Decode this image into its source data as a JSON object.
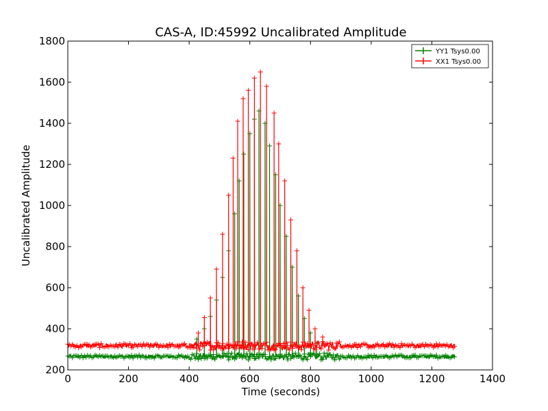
{
  "chart_data": {
    "type": "line",
    "title": "CAS-A, ID:45992 Uncalibrated Amplitude",
    "xlabel": "Time (seconds)",
    "ylabel": "Uncalibrated Amplitude",
    "xlim": [
      0,
      1400
    ],
    "ylim": [
      200,
      1800
    ],
    "xticks": [
      0,
      200,
      400,
      600,
      800,
      1000,
      1200,
      1400
    ],
    "yticks": [
      200,
      400,
      600,
      800,
      1000,
      1200,
      1400,
      1600,
      1800
    ],
    "grid": false,
    "legend_position": "top-right",
    "series": [
      {
        "name": "YY1 Tsys0.00",
        "color": "#008000",
        "baseline": 265,
        "baseline_noise": 8,
        "x_range": [
          0,
          1275
        ],
        "peaks": [
          {
            "x": 425,
            "y": 350
          },
          {
            "x": 450,
            "y": 400
          },
          {
            "x": 470,
            "y": 460
          },
          {
            "x": 490,
            "y": 540
          },
          {
            "x": 510,
            "y": 650
          },
          {
            "x": 530,
            "y": 780
          },
          {
            "x": 550,
            "y": 960
          },
          {
            "x": 565,
            "y": 1120
          },
          {
            "x": 580,
            "y": 1250
          },
          {
            "x": 600,
            "y": 1350
          },
          {
            "x": 615,
            "y": 1420
          },
          {
            "x": 630,
            "y": 1460
          },
          {
            "x": 650,
            "y": 1400
          },
          {
            "x": 665,
            "y": 1290
          },
          {
            "x": 685,
            "y": 1150
          },
          {
            "x": 700,
            "y": 1000
          },
          {
            "x": 720,
            "y": 850
          },
          {
            "x": 740,
            "y": 700
          },
          {
            "x": 760,
            "y": 560
          },
          {
            "x": 780,
            "y": 450
          },
          {
            "x": 800,
            "y": 380
          },
          {
            "x": 820,
            "y": 330
          }
        ]
      },
      {
        "name": "XX1 Tsys0.00",
        "color": "#ff0000",
        "baseline": 318,
        "baseline_noise": 10,
        "x_range": [
          0,
          1275
        ],
        "peaks": [
          {
            "x": 430,
            "y": 380
          },
          {
            "x": 450,
            "y": 455
          },
          {
            "x": 470,
            "y": 550
          },
          {
            "x": 490,
            "y": 690
          },
          {
            "x": 510,
            "y": 860
          },
          {
            "x": 530,
            "y": 1050
          },
          {
            "x": 545,
            "y": 1230
          },
          {
            "x": 560,
            "y": 1410
          },
          {
            "x": 578,
            "y": 1520
          },
          {
            "x": 595,
            "y": 1560
          },
          {
            "x": 615,
            "y": 1620
          },
          {
            "x": 635,
            "y": 1650
          },
          {
            "x": 655,
            "y": 1580
          },
          {
            "x": 680,
            "y": 1450
          },
          {
            "x": 695,
            "y": 1300
          },
          {
            "x": 715,
            "y": 1120
          },
          {
            "x": 735,
            "y": 930
          },
          {
            "x": 755,
            "y": 780
          },
          {
            "x": 775,
            "y": 600
          },
          {
            "x": 795,
            "y": 490
          },
          {
            "x": 815,
            "y": 400
          },
          {
            "x": 840,
            "y": 360
          }
        ]
      }
    ]
  }
}
